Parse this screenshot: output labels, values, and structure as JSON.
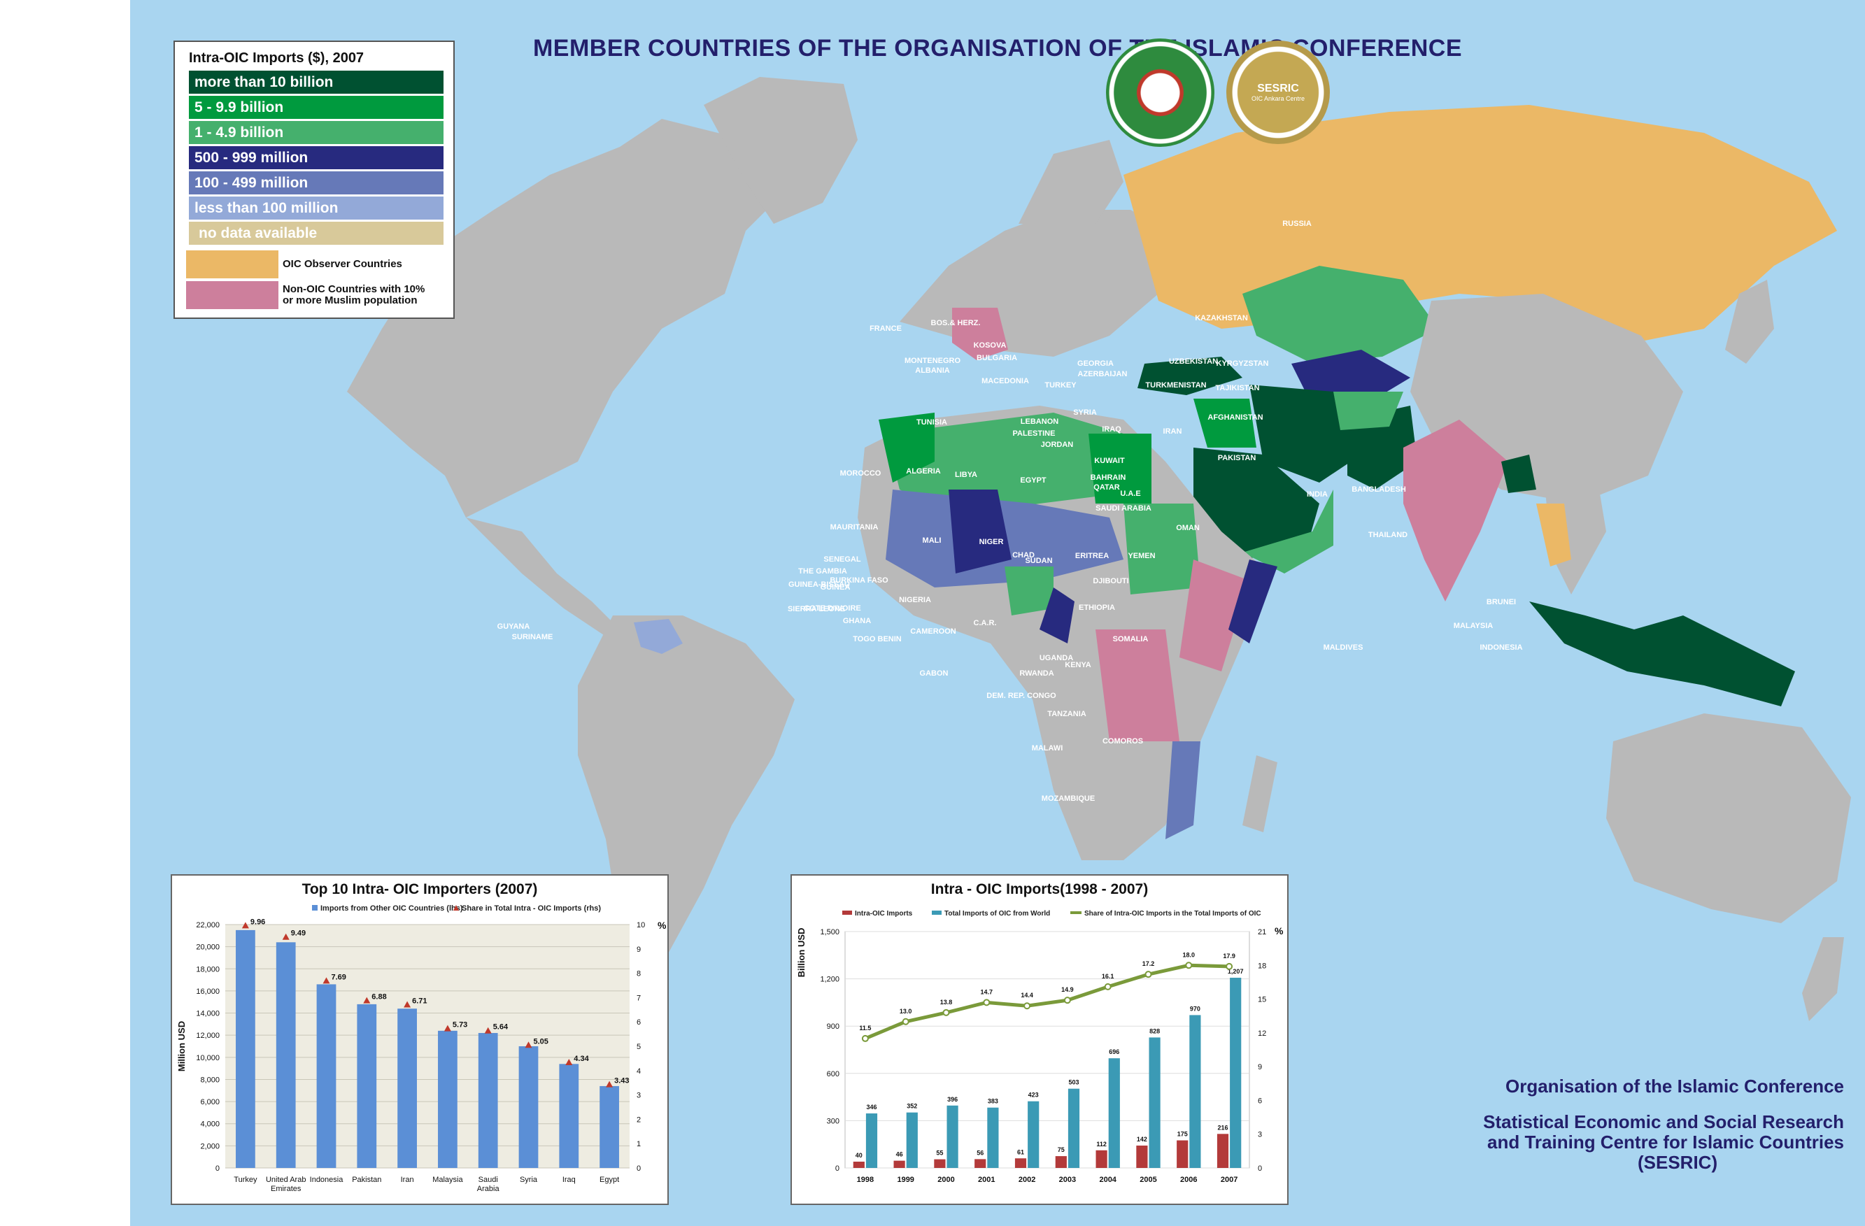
{
  "title": "MEMBER COUNTRIES OF THE ORGANISATION OF THE ISLAMIC CONFERENCE",
  "colors": {
    "ocean": "#a9d5f0",
    "land_other": "#b9b9b9",
    "gt10b": "#005131",
    "b5_9": "#009a3e",
    "b1_4": "#45b06d",
    "m500_999": "#272a7f",
    "m100_499": "#6679b8",
    "lt100m": "#93a9d8",
    "no_data": "#d8c99a",
    "observer": "#ebb866",
    "non_oic_muslim": "#cd7f9c",
    "title_blue": "#231f6b"
  },
  "legend": {
    "title": "Intra-OIC Imports ($), 2007",
    "rows": [
      {
        "label": "more than 10 billion",
        "color": "#005131"
      },
      {
        "label": "5 - 9.9 billion",
        "color": "#009a3e"
      },
      {
        "label": "1 - 4.9 billion",
        "color": "#45b06d"
      },
      {
        "label": "500 - 999 million",
        "color": "#272a7f"
      },
      {
        "label": "100 - 499 million",
        "color": "#6679b8"
      },
      {
        "label": "less than 100 million",
        "color": "#93a9d8"
      },
      {
        "label": "no data available",
        "color": "#d8c99a"
      }
    ],
    "observer_label": "OIC Observer Countries",
    "non_oic_line1": "Non-OIC Countries with 10%",
    "non_oic_line2": "or more Muslim population"
  },
  "org": {
    "line1": "Organisation of the Islamic Conference",
    "line2": "Statistical Economic and Social Research",
    "line3": "and Training Centre for Islamic Countries",
    "line4": "(SESRIC)"
  },
  "logos": {
    "sesric": "SESRIC",
    "sesric_sub": "OIC Ankara Centre"
  },
  "country_labels": [
    "RUSSIA",
    "KAZAKHSTAN",
    "UZBEKISTAN",
    "KYRGYZSTAN",
    "TURKMENISTAN",
    "TAJIKISTAN",
    "GEORGIA",
    "AZERBAIJAN",
    "TURKEY",
    "SYRIA",
    "IRAQ",
    "IRAN",
    "AFGHANISTAN",
    "PAKISTAN",
    "LEBANON",
    "PALESTINE",
    "JORDAN",
    "KUWAIT",
    "BAHRAIN",
    "QATAR",
    "U.A.E",
    "SAUDI ARABIA",
    "OMAN",
    "YEMEN",
    "INDIA",
    "BANGLADESH",
    "THAILAND",
    "BRUNEI",
    "MALAYSIA",
    "INDONESIA",
    "MALDIVES",
    "FRANCE",
    "BOS.& HERZ.",
    "KOSOVA",
    "MONTENEGRO",
    "BULGARIA",
    "ALBANIA",
    "MACEDONIA",
    "TUNISIA",
    "MOROCCO",
    "ALGERIA",
    "LIBYA",
    "EGYPT",
    "MAURITANIA",
    "MALI",
    "NIGER",
    "CHAD",
    "SUDAN",
    "ERITREA",
    "DJIBOUTI",
    "ETHIOPIA",
    "SOMALIA",
    "SENEGAL",
    "THE GAMBIA",
    "GUINEA-BISSAU",
    "GUINEA",
    "BURKINA FASO",
    "SIERRA LEONE",
    "COTE D'IVOIRE",
    "GHANA",
    "TOGO BENIN",
    "NIGERIA",
    "CAMEROON",
    "C.A.R.",
    "GABON",
    "UGANDA",
    "KENYA",
    "RWANDA",
    "DEM. REP. CONGO",
    "TANZANIA",
    "MALAWI",
    "COMOROS",
    "MOZAMBIQUE",
    "GUYANA",
    "SURINAME"
  ],
  "chart_data": [
    {
      "type": "bar",
      "title": "Top 10 Intra- OIC Importers (2007)",
      "legend": [
        "Imports from Other OIC Countries (lhs)",
        "Share in Total Intra - OIC Imports (rhs)"
      ],
      "ylabel": "Million USD",
      "y2label": "%",
      "categories": [
        "Turkey",
        "United Arab Emirates",
        "Indonesia",
        "Pakistan",
        "Iran",
        "Malaysia",
        "Saudi Arabia",
        "Syria",
        "Iraq",
        "Egypt"
      ],
      "series": [
        {
          "name": "Imports from Other OIC Countries (lhs)",
          "values": [
            21500,
            20400,
            16600,
            14800,
            14400,
            12400,
            12200,
            11000,
            9400,
            7400
          ]
        },
        {
          "name": "Share in Total Intra - OIC Imports (rhs)",
          "values": [
            9.96,
            9.49,
            7.69,
            6.88,
            6.71,
            5.73,
            5.64,
            5.05,
            4.34,
            3.43
          ]
        }
      ],
      "ylim": [
        0,
        22000
      ],
      "yticks": [
        "22,000",
        "20,000",
        "18,000",
        "16,000",
        "14,000",
        "12,000",
        "10,000",
        "8,000",
        "6,000",
        "4,000",
        "2,000",
        "0"
      ],
      "y2lim": [
        0,
        10
      ],
      "y2ticks": [
        "10",
        "9",
        "8",
        "7",
        "6",
        "5",
        "4",
        "3",
        "2",
        "1",
        "0"
      ]
    },
    {
      "type": "bar",
      "title": "Intra - OIC Imports(1998 - 2007)",
      "legend": [
        "Intra-OIC Imports",
        "Total Imports of OIC  from World",
        "Share of Intra-OIC Imports in the Total Imports of OIC"
      ],
      "ylabel": "Billion USD",
      "y2label": "%",
      "categories": [
        "1998",
        "1999",
        "2000",
        "2001",
        "2002",
        "2003",
        "2004",
        "2005",
        "2006",
        "2007"
      ],
      "series": [
        {
          "name": "Intra-OIC Imports",
          "values": [
            40,
            46,
            55,
            56,
            61,
            75,
            112,
            142,
            175,
            216
          ]
        },
        {
          "name": "Total Imports of OIC  from World",
          "values": [
            346,
            352,
            396,
            383,
            423,
            503,
            696,
            828,
            970,
            1207
          ]
        },
        {
          "name": "Share of Intra-OIC Imports in the Total Imports of OIC",
          "values": [
            11.5,
            13.0,
            13.8,
            14.7,
            14.4,
            14.9,
            16.1,
            17.2,
            18.0,
            17.9
          ]
        }
      ],
      "value_labels": {
        "intra": [
          "40",
          "46",
          "55",
          "56",
          "61",
          "75",
          "112",
          "142",
          "175",
          "216"
        ],
        "total": [
          "346",
          "352",
          "396",
          "383",
          "423",
          "503",
          "696",
          "828",
          "970",
          "1,207"
        ],
        "share": [
          "11.5",
          "13.0",
          "13.8",
          "14.7",
          "14.4",
          "14.9",
          "16.1",
          "17.2",
          "18.0",
          "17.9"
        ]
      },
      "ylim": [
        0,
        1500
      ],
      "yticks": [
        "1,500",
        "1,200",
        "900",
        "600",
        "300",
        "0"
      ],
      "y2lim": [
        0,
        21
      ],
      "y2ticks": [
        "21",
        "18",
        "15",
        "12",
        "9",
        "6",
        "3",
        "0"
      ]
    }
  ]
}
